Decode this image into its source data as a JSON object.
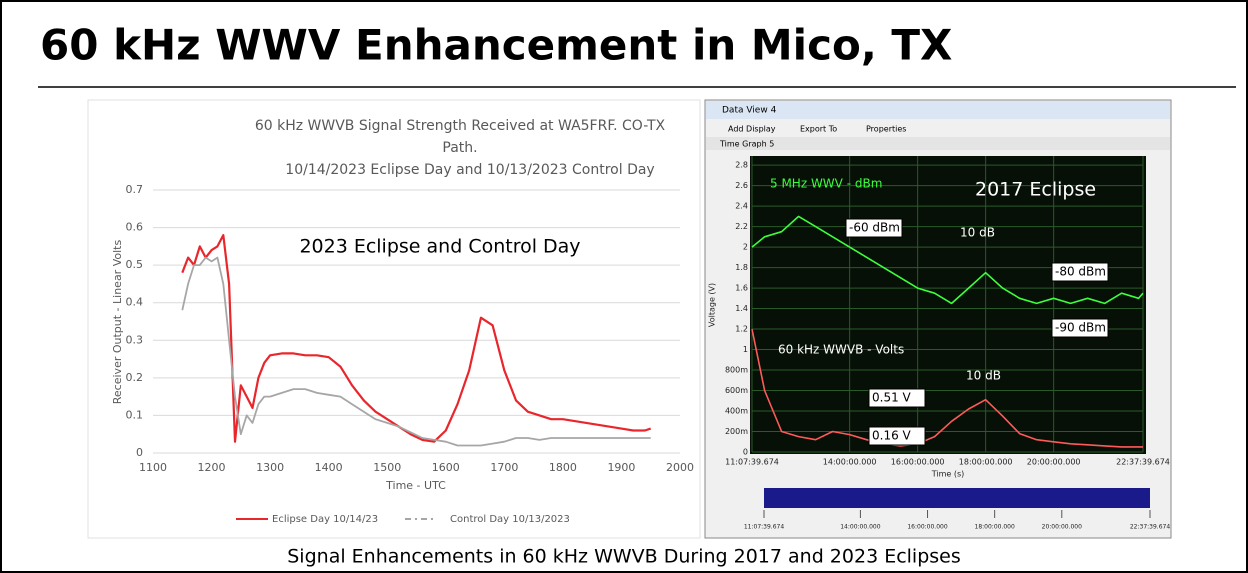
{
  "title": "60 kHz WWV Enhancement in Mico, TX",
  "caption": "Signal Enhancements in 60 kHz WWVB During 2017 and 2023 Eclipses",
  "chart_data": [
    {
      "type": "line",
      "title": [
        "60 kHz WWVB Signal Strength Received at WA5FRF. CO-TX",
        "Path.",
        "10/14/2023 Eclipse Day and 10/13/2023 Control Day"
      ],
      "annotation": "2023 Eclipse and Control Day",
      "x_label": "Time - UTC",
      "y_label": "Receiver Output - Linear Volts",
      "x": [
        1150,
        1160,
        1170,
        1180,
        1190,
        1200,
        1210,
        1220,
        1230,
        1240,
        1250,
        1260,
        1270,
        1280,
        1290,
        1300,
        1320,
        1340,
        1360,
        1380,
        1400,
        1420,
        1440,
        1460,
        1480,
        1500,
        1520,
        1540,
        1560,
        1580,
        1600,
        1620,
        1640,
        1660,
        1680,
        1700,
        1720,
        1740,
        1760,
        1780,
        1800,
        1820,
        1840,
        1860,
        1880,
        1900,
        1920,
        1940,
        1950
      ],
      "series": [
        {
          "name": "Eclipse Day 10/14/23",
          "color": "#e8262b",
          "values": [
            0.48,
            0.52,
            0.5,
            0.55,
            0.52,
            0.54,
            0.55,
            0.58,
            0.45,
            0.03,
            0.18,
            0.15,
            0.12,
            0.2,
            0.24,
            0.26,
            0.265,
            0.265,
            0.26,
            0.26,
            0.255,
            0.23,
            0.18,
            0.14,
            0.11,
            0.09,
            0.07,
            0.05,
            0.035,
            0.03,
            0.06,
            0.13,
            0.22,
            0.36,
            0.34,
            0.22,
            0.14,
            0.11,
            0.1,
            0.09,
            0.09,
            0.085,
            0.08,
            0.075,
            0.07,
            0.065,
            0.06,
            0.06,
            0.065
          ]
        },
        {
          "name": "Control Day 10/13/2023",
          "color": "#a6a6a6",
          "values": [
            0.38,
            0.45,
            0.5,
            0.5,
            0.52,
            0.51,
            0.52,
            0.45,
            0.3,
            0.15,
            0.05,
            0.1,
            0.08,
            0.13,
            0.15,
            0.15,
            0.16,
            0.17,
            0.17,
            0.16,
            0.155,
            0.15,
            0.13,
            0.11,
            0.09,
            0.08,
            0.07,
            0.055,
            0.04,
            0.035,
            0.03,
            0.02,
            0.02,
            0.02,
            0.025,
            0.03,
            0.04,
            0.04,
            0.035,
            0.04,
            0.04,
            0.04,
            0.04,
            0.04,
            0.04,
            0.04,
            0.04,
            0.04,
            0.04
          ]
        }
      ],
      "xlim": [
        1100,
        2000
      ],
      "xticks": [
        1100,
        1200,
        1300,
        1400,
        1500,
        1600,
        1700,
        1800,
        1900,
        2000
      ],
      "ylim": [
        0,
        0.7
      ],
      "yticks": [
        0,
        0.1,
        0.2,
        0.3,
        0.4,
        0.5,
        0.6,
        0.7
      ],
      "grid": true
    },
    {
      "type": "line",
      "window": {
        "title": "Data View 4",
        "menu": [
          "Add Display",
          "Export To",
          "Properties"
        ],
        "tab": "Time Graph 5"
      },
      "x_label": "Time (s)",
      "y_label": "Voltage (V)",
      "annotations": [
        "2017 Eclipse",
        "-60 dBm",
        "10 dB",
        "-80 dBm",
        "-90 dBm",
        "10 dB",
        "0.51 V",
        "0.16 V"
      ],
      "x": [
        11.128,
        11.5,
        12,
        12.5,
        13,
        13.5,
        14,
        14.5,
        15,
        15.5,
        16,
        16.5,
        17,
        17.5,
        18,
        18.5,
        19,
        19.5,
        20,
        20.5,
        21,
        21.5,
        22,
        22.5,
        22.628
      ],
      "series": [
        {
          "name": "5 MHz WWV - dBm",
          "color": "#3cff3c",
          "values": [
            2.0,
            2.1,
            2.15,
            2.3,
            2.2,
            2.1,
            2.0,
            1.9,
            1.8,
            1.7,
            1.6,
            1.55,
            1.45,
            1.6,
            1.75,
            1.6,
            1.5,
            1.45,
            1.5,
            1.45,
            1.5,
            1.45,
            1.55,
            1.5,
            1.55
          ]
        },
        {
          "name": "60 kHz WWVB - Volts",
          "color": "#ff5a5a",
          "values": [
            1.2,
            0.6,
            0.2,
            0.15,
            0.12,
            0.2,
            0.17,
            0.12,
            0.08,
            0.06,
            0.08,
            0.15,
            0.3,
            0.42,
            0.51,
            0.35,
            0.18,
            0.12,
            0.1,
            0.08,
            0.07,
            0.06,
            0.05,
            0.05,
            0.05
          ]
        }
      ],
      "xlim": [
        11.128,
        22.628
      ],
      "xticks": [
        {
          "value": 11.128,
          "label": "11:07:39.674"
        },
        {
          "value": 14,
          "label": "14:00:00.000"
        },
        {
          "value": 16,
          "label": "16:00:00.000"
        },
        {
          "value": 18,
          "label": "18:00:00.000"
        },
        {
          "value": 20,
          "label": "20:00:00.000"
        },
        {
          "value": 22.628,
          "label": "22:37:39.674"
        }
      ],
      "ylim": [
        0,
        2.85
      ],
      "yticks": [
        0,
        {
          "value": 0.2,
          "label": "200m"
        },
        {
          "value": 0.4,
          "label": "400m"
        },
        {
          "value": 0.6,
          "label": "600m"
        },
        {
          "value": 0.8,
          "label": "800m"
        },
        1,
        1.2,
        1.4,
        1.6,
        1.8,
        2,
        2.2,
        2.4,
        2.6,
        2.8
      ],
      "grid": true
    }
  ]
}
